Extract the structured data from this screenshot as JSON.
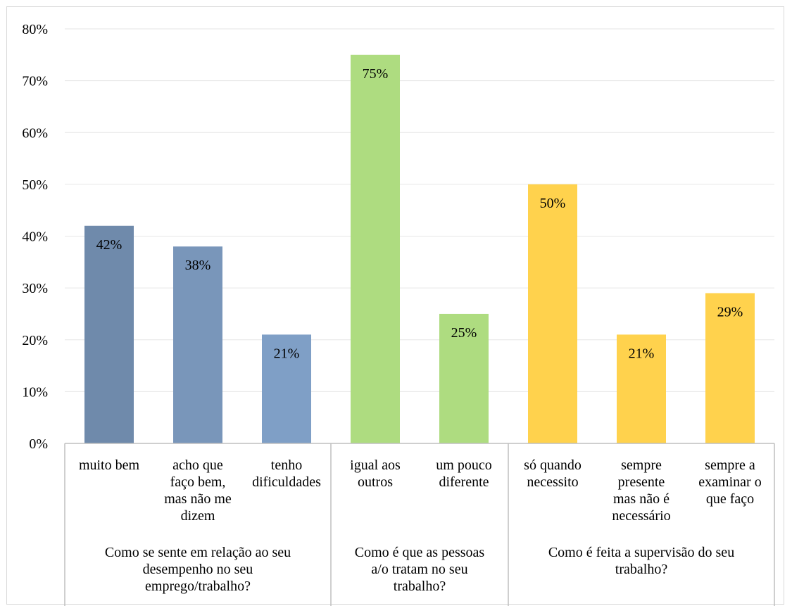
{
  "chart_data": {
    "type": "bar",
    "title": "",
    "xlabel": "",
    "ylabel": "",
    "ylim": [
      0,
      0.8
    ],
    "yticks": [
      "0%",
      "10%",
      "20%",
      "30%",
      "40%",
      "50%",
      "60%",
      "70%",
      "80%"
    ],
    "grid": true,
    "legend": "none",
    "groups": [
      {
        "label": "Como se sente em relação ao seu desempenho no seu emprego/trabalho?",
        "label_lines": [
          "Como se sente em relação ao seu",
          "desempenho no seu",
          "emprego/trabalho?"
        ],
        "color": "#7f9cc1",
        "categories": [
          {
            "label": "muito bem",
            "label_lines": [
              "muito bem"
            ],
            "value": 0.42,
            "value_label": "42%",
            "color": "#6f8aab"
          },
          {
            "label": "acho que faço bem, mas não me dizem",
            "label_lines": [
              "acho que",
              "faço bem,",
              "mas não me",
              "dizem"
            ],
            "value": 0.38,
            "value_label": "38%",
            "color": "#7996ba"
          },
          {
            "label": "tenho dificuldades",
            "label_lines": [
              "tenho",
              "dificuldades"
            ],
            "value": 0.21,
            "value_label": "21%",
            "color": "#7f9fc6"
          }
        ]
      },
      {
        "label": "Como é que as pessoas a/o tratam no seu trabalho?",
        "label_lines": [
          "Como é que as pessoas",
          "a/o tratam no seu",
          "trabalho?"
        ],
        "color": "#aedc80",
        "categories": [
          {
            "label": "igual aos outros",
            "label_lines": [
              "igual aos",
              "outros"
            ],
            "value": 0.75,
            "value_label": "75%",
            "color": "#aedc80"
          },
          {
            "label": "um pouco diferente",
            "label_lines": [
              "um pouco",
              "diferente"
            ],
            "value": 0.25,
            "value_label": "25%",
            "color": "#aedc80"
          }
        ]
      },
      {
        "label": "Como é feita a supervisão do seu trabalho?",
        "label_lines": [
          "Como é feita a supervisão do seu",
          "trabalho?"
        ],
        "color": "#ffd24d",
        "categories": [
          {
            "label": "só quando necessito",
            "label_lines": [
              "só quando",
              "necessito"
            ],
            "value": 0.5,
            "value_label": "50%",
            "color": "#ffd24d"
          },
          {
            "label": "sempre presente mas não é necessário",
            "label_lines": [
              "sempre",
              "presente",
              "mas não é",
              "necessário"
            ],
            "value": 0.21,
            "value_label": "21%",
            "color": "#ffd24d"
          },
          {
            "label": "sempre a examinar o que faço",
            "label_lines": [
              "sempre a",
              "examinar o",
              "que faço"
            ],
            "value": 0.29,
            "value_label": "29%",
            "color": "#ffd24d"
          }
        ]
      }
    ]
  }
}
